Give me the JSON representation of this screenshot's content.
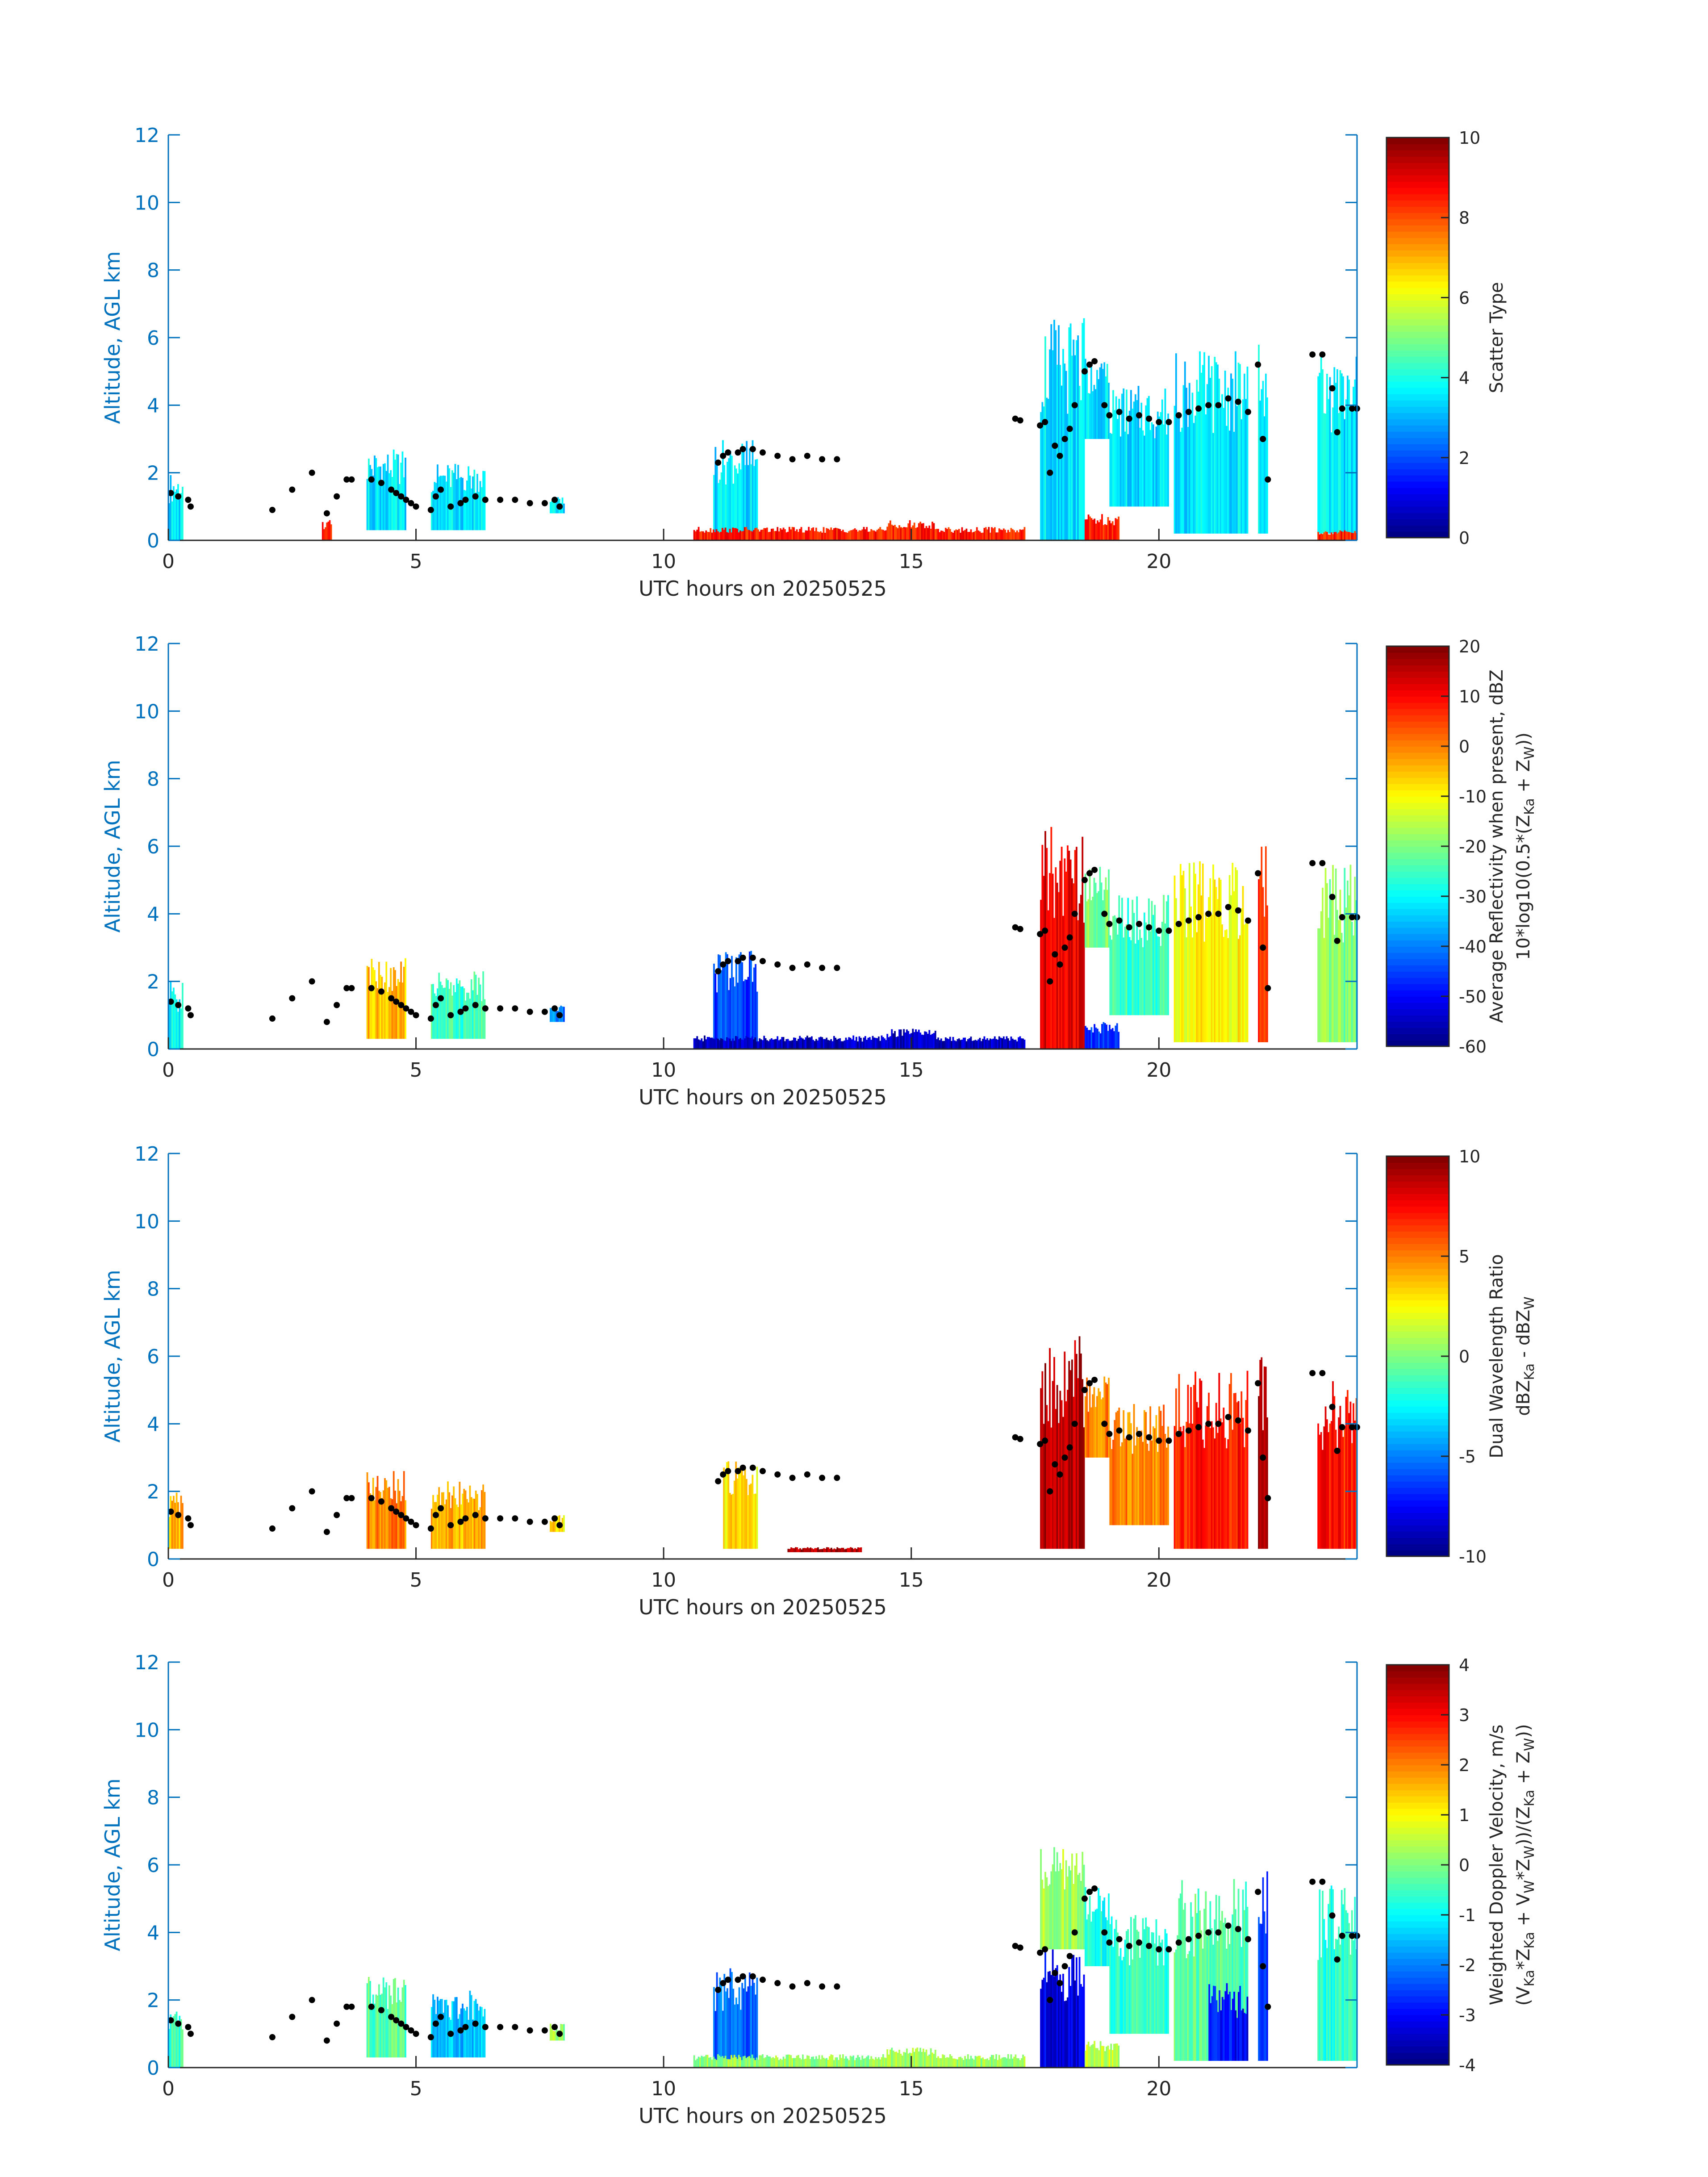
{
  "chart_data": [
    {
      "type": "heatmap",
      "xlabel": "UTC hours on 20250525",
      "ylabel": "Altitude, AGL km",
      "xlim": [
        0,
        24
      ],
      "ylim": [
        0,
        12
      ],
      "xticks": [
        0,
        5,
        10,
        15,
        20
      ],
      "yticks": [
        0,
        2,
        4,
        6,
        8,
        10,
        12
      ],
      "colormap": "jet",
      "clim": [
        0,
        10
      ],
      "cticks": [
        0,
        2,
        4,
        6,
        8,
        10
      ],
      "clabel": [
        [
          {
            "t": "Scatter Type"
          }
        ]
      ],
      "segments": [
        {
          "t": [
            0,
            0.3
          ],
          "z": [
            0,
            2.0
          ],
          "v": 3.5
        },
        {
          "t": [
            4.0,
            4.8
          ],
          "z": [
            0.3,
            2.7
          ],
          "v": 3.5
        },
        {
          "t": [
            5.3,
            6.4
          ],
          "z": [
            0.3,
            2.3
          ],
          "v": 3.5
        },
        {
          "t": [
            7.7,
            8.0
          ],
          "z": [
            0.8,
            1.3
          ],
          "v": 3.5
        },
        {
          "t": [
            11.0,
            11.9
          ],
          "z": [
            0,
            3.0
          ],
          "v": 3.5
        },
        {
          "t": [
            17.6,
            18.5
          ],
          "z": [
            0,
            6.6
          ],
          "v": 3.5
        },
        {
          "t": [
            18.5,
            19.0
          ],
          "z": [
            3.0,
            5.4
          ],
          "v": 3.5
        },
        {
          "t": [
            19.0,
            20.2
          ],
          "z": [
            1.0,
            4.6
          ],
          "v": 3.5
        },
        {
          "t": [
            20.3,
            21.8
          ],
          "z": [
            0.2,
            5.6
          ],
          "v": 3.5
        },
        {
          "t": [
            22.0,
            22.2
          ],
          "z": [
            0.2,
            6.0
          ],
          "v": 3.5
        },
        {
          "t": [
            23.2,
            24.0
          ],
          "z": [
            0.2,
            5.5
          ],
          "v": 3.5
        },
        {
          "t": [
            3.1,
            3.3
          ],
          "z": [
            0,
            0.6
          ],
          "v": 8.5
        },
        {
          "t": [
            10.6,
            17.3
          ],
          "z": [
            0,
            0.4
          ],
          "v": 8.5
        },
        {
          "t": [
            14.5,
            15.5
          ],
          "z": [
            0,
            0.6
          ],
          "v": 8.5
        },
        {
          "t": [
            18.5,
            19.2
          ],
          "z": [
            0,
            0.8
          ],
          "v": 8.5
        },
        {
          "t": [
            23.2,
            24.0
          ],
          "z": [
            0,
            0.3
          ],
          "v": 8.5
        }
      ]
    },
    {
      "type": "heatmap",
      "xlabel": "UTC hours on 20250525",
      "ylabel": "Altitude, AGL km",
      "xlim": [
        0,
        24
      ],
      "ylim": [
        0,
        12
      ],
      "xticks": [
        0,
        5,
        10,
        15,
        20
      ],
      "yticks": [
        0,
        2,
        4,
        6,
        8,
        10,
        12
      ],
      "colormap": "jet",
      "clim": [
        -60,
        20
      ],
      "cticks": [
        -60,
        -50,
        -40,
        -30,
        -20,
        -10,
        0,
        10,
        20
      ],
      "clabel": [
        [
          {
            "t": "Average Reflectivity when present, dBZ"
          }
        ],
        [
          {
            "t": "10*log10(0.5*(Z"
          },
          {
            "t": "Ka",
            "sub": true
          },
          {
            "t": " + Z"
          },
          {
            "t": "W",
            "sub": true
          },
          {
            "t": "))"
          }
        ]
      ],
      "segments": [
        {
          "t": [
            0,
            0.3
          ],
          "z": [
            0,
            2.0
          ],
          "v": -30
        },
        {
          "t": [
            4.0,
            4.8
          ],
          "z": [
            0.3,
            2.7
          ],
          "v": -5
        },
        {
          "t": [
            5.3,
            6.4
          ],
          "z": [
            0.3,
            2.3
          ],
          "v": -25
        },
        {
          "t": [
            7.7,
            8.0
          ],
          "z": [
            0.8,
            1.3
          ],
          "v": -40
        },
        {
          "t": [
            11.0,
            11.9
          ],
          "z": [
            0,
            3.0
          ],
          "v": -45
        },
        {
          "t": [
            17.6,
            18.5
          ],
          "z": [
            0,
            6.6
          ],
          "v": 12
        },
        {
          "t": [
            18.5,
            19.0
          ],
          "z": [
            3.0,
            5.4
          ],
          "v": -20
        },
        {
          "t": [
            19.0,
            20.2
          ],
          "z": [
            1.0,
            4.6
          ],
          "v": -25
        },
        {
          "t": [
            20.3,
            21.8
          ],
          "z": [
            0.2,
            5.6
          ],
          "v": -10
        },
        {
          "t": [
            22.0,
            22.2
          ],
          "z": [
            0.2,
            6.0
          ],
          "v": 5
        },
        {
          "t": [
            23.2,
            24.0
          ],
          "z": [
            0.2,
            5.5
          ],
          "v": -20
        },
        {
          "t": [
            10.6,
            17.3
          ],
          "z": [
            0,
            0.4
          ],
          "v": -55
        },
        {
          "t": [
            14.5,
            15.5
          ],
          "z": [
            0,
            0.6
          ],
          "v": -55
        },
        {
          "t": [
            18.5,
            19.2
          ],
          "z": [
            0,
            0.8
          ],
          "v": -45
        }
      ]
    },
    {
      "type": "heatmap",
      "xlabel": "UTC hours on 20250525",
      "ylabel": "Altitude, AGL km",
      "xlim": [
        0,
        24
      ],
      "ylim": [
        0,
        12
      ],
      "xticks": [
        0,
        5,
        10,
        15,
        20
      ],
      "yticks": [
        0,
        2,
        4,
        6,
        8,
        10,
        12
      ],
      "colormap": "jet",
      "clim": [
        -10,
        10
      ],
      "cticks": [
        -10,
        -5,
        0,
        5,
        10
      ],
      "clabel": [
        [
          {
            "t": "Dual Wavelength Ratio"
          }
        ],
        [
          {
            "t": "dBZ"
          },
          {
            "t": "Ka",
            "sub": true
          },
          {
            "t": " - dBZ"
          },
          {
            "t": "W",
            "sub": true
          }
        ]
      ],
      "segments": [
        {
          "t": [
            0,
            0.3
          ],
          "z": [
            0.3,
            2.0
          ],
          "v": 4
        },
        {
          "t": [
            4.0,
            4.8
          ],
          "z": [
            0.3,
            2.7
          ],
          "v": 5
        },
        {
          "t": [
            5.3,
            6.4
          ],
          "z": [
            0.3,
            2.3
          ],
          "v": 4
        },
        {
          "t": [
            7.7,
            8.0
          ],
          "z": [
            0.8,
            1.3
          ],
          "v": 3
        },
        {
          "t": [
            11.2,
            11.9
          ],
          "z": [
            0.3,
            3.0
          ],
          "v": 3
        },
        {
          "t": [
            17.6,
            18.5
          ],
          "z": [
            0.3,
            6.6
          ],
          "v": 9
        },
        {
          "t": [
            18.5,
            19.0
          ],
          "z": [
            3.0,
            5.4
          ],
          "v": 5
        },
        {
          "t": [
            19.0,
            20.2
          ],
          "z": [
            1.0,
            4.6
          ],
          "v": 5
        },
        {
          "t": [
            20.3,
            21.8
          ],
          "z": [
            0.3,
            5.6
          ],
          "v": 7
        },
        {
          "t": [
            22.0,
            22.2
          ],
          "z": [
            0.3,
            6.0
          ],
          "v": 9
        },
        {
          "t": [
            23.2,
            24.0
          ],
          "z": [
            0.3,
            5.5
          ],
          "v": 7
        },
        {
          "t": [
            12.5,
            14.0
          ],
          "z": [
            0.2,
            0.35
          ],
          "v": 9
        }
      ]
    },
    {
      "type": "heatmap",
      "xlabel": "UTC hours on 20250525",
      "ylabel": "Altitude, AGL km",
      "xlim": [
        0,
        24
      ],
      "ylim": [
        0,
        12
      ],
      "xticks": [
        0,
        5,
        10,
        15,
        20
      ],
      "yticks": [
        0,
        2,
        4,
        6,
        8,
        10,
        12
      ],
      "colormap": "jet",
      "clim": [
        -4,
        4
      ],
      "cticks": [
        -4,
        -3,
        -2,
        -1,
        0,
        1,
        2,
        3,
        4
      ],
      "clabel": [
        [
          {
            "t": "Weighted Doppler Velocity, m/s"
          }
        ],
        [
          {
            "t": "(V"
          },
          {
            "t": "Ka",
            "sub": true
          },
          {
            "t": "*Z"
          },
          {
            "t": "Ka",
            "sub": true
          },
          {
            "t": " + V"
          },
          {
            "t": "W",
            "sub": true
          },
          {
            "t": "*Z"
          },
          {
            "t": "W",
            "sub": true
          },
          {
            "t": "))/(Z"
          },
          {
            "t": "Ka",
            "sub": true
          },
          {
            "t": " + Z"
          },
          {
            "t": "W",
            "sub": true
          },
          {
            "t": "))"
          }
        ]
      ],
      "segments": [
        {
          "t": [
            0,
            0.3
          ],
          "z": [
            0,
            2.0
          ],
          "v": -0.5
        },
        {
          "t": [
            4.0,
            4.8
          ],
          "z": [
            0.3,
            2.7
          ],
          "v": -0.3
        },
        {
          "t": [
            5.3,
            6.4
          ],
          "z": [
            0.3,
            2.3
          ],
          "v": -1.5
        },
        {
          "t": [
            7.7,
            8.0
          ],
          "z": [
            0.8,
            1.3
          ],
          "v": 0.2
        },
        {
          "t": [
            11.0,
            11.9
          ],
          "z": [
            0,
            3.0
          ],
          "v": -2.2
        },
        {
          "t": [
            17.6,
            18.5
          ],
          "z": [
            0,
            3.5
          ],
          "v": -3.2
        },
        {
          "t": [
            17.6,
            18.5
          ],
          "z": [
            3.5,
            6.6
          ],
          "v": 0.3
        },
        {
          "t": [
            18.5,
            19.0
          ],
          "z": [
            3.0,
            5.4
          ],
          "v": -0.8
        },
        {
          "t": [
            19.0,
            20.2
          ],
          "z": [
            1.0,
            4.6
          ],
          "v": -0.6
        },
        {
          "t": [
            20.3,
            21.8
          ],
          "z": [
            0.2,
            5.6
          ],
          "v": -0.3
        },
        {
          "t": [
            21.0,
            21.8
          ],
          "z": [
            0.2,
            2.5
          ],
          "v": -3.0
        },
        {
          "t": [
            22.0,
            22.2
          ],
          "z": [
            0.2,
            6.0
          ],
          "v": -2.5
        },
        {
          "t": [
            23.2,
            24.0
          ],
          "z": [
            0.2,
            5.5
          ],
          "v": -0.7
        },
        {
          "t": [
            10.6,
            17.3
          ],
          "z": [
            0,
            0.4
          ],
          "v": 0.2
        },
        {
          "t": [
            14.5,
            15.5
          ],
          "z": [
            0,
            0.6
          ],
          "v": 0.3
        },
        {
          "t": [
            18.5,
            19.2
          ],
          "z": [
            0,
            0.8
          ],
          "v": 0.6
        }
      ]
    }
  ],
  "cloud_base_points": [
    [
      0.05,
      1.4
    ],
    [
      0.2,
      1.3
    ],
    [
      0.4,
      1.2
    ],
    [
      0.45,
      1.0
    ],
    [
      2.1,
      0.9
    ],
    [
      2.5,
      1.5
    ],
    [
      2.9,
      2.0
    ],
    [
      3.2,
      0.8
    ],
    [
      3.4,
      1.3
    ],
    [
      3.6,
      1.8
    ],
    [
      3.7,
      1.8
    ],
    [
      4.1,
      1.8
    ],
    [
      4.3,
      1.7
    ],
    [
      4.5,
      1.5
    ],
    [
      4.6,
      1.4
    ],
    [
      4.7,
      1.3
    ],
    [
      4.8,
      1.2
    ],
    [
      4.9,
      1.1
    ],
    [
      5.0,
      1.0
    ],
    [
      5.3,
      0.9
    ],
    [
      5.4,
      1.3
    ],
    [
      5.5,
      1.5
    ],
    [
      5.7,
      1.0
    ],
    [
      5.9,
      1.1
    ],
    [
      6.0,
      1.2
    ],
    [
      6.2,
      1.3
    ],
    [
      6.4,
      1.2
    ],
    [
      6.7,
      1.2
    ],
    [
      7.0,
      1.2
    ],
    [
      7.3,
      1.1
    ],
    [
      7.6,
      1.1
    ],
    [
      7.8,
      1.2
    ],
    [
      7.9,
      1.0
    ],
    [
      11.1,
      2.3
    ],
    [
      11.2,
      2.5
    ],
    [
      11.3,
      2.6
    ],
    [
      11.5,
      2.6
    ],
    [
      11.6,
      2.7
    ],
    [
      11.8,
      2.7
    ],
    [
      12.0,
      2.6
    ],
    [
      12.3,
      2.5
    ],
    [
      12.6,
      2.4
    ],
    [
      12.9,
      2.5
    ],
    [
      13.2,
      2.4
    ],
    [
      13.5,
      2.4
    ],
    [
      17.1,
      3.6
    ],
    [
      17.2,
      3.55
    ],
    [
      17.6,
      3.4
    ],
    [
      17.7,
      3.5
    ],
    [
      17.8,
      2.0
    ],
    [
      17.9,
      2.8
    ],
    [
      18.0,
      2.5
    ],
    [
      18.1,
      3.0
    ],
    [
      18.2,
      3.3
    ],
    [
      18.3,
      4.0
    ],
    [
      18.5,
      5.0
    ],
    [
      18.6,
      5.2
    ],
    [
      18.7,
      5.3
    ],
    [
      18.9,
      4.0
    ],
    [
      19.0,
      3.7
    ],
    [
      19.2,
      3.8
    ],
    [
      19.4,
      3.6
    ],
    [
      19.6,
      3.7
    ],
    [
      19.8,
      3.6
    ],
    [
      20.0,
      3.5
    ],
    [
      20.2,
      3.5
    ],
    [
      20.4,
      3.7
    ],
    [
      20.6,
      3.8
    ],
    [
      20.8,
      3.9
    ],
    [
      21.0,
      4.0
    ],
    [
      21.2,
      4.0
    ],
    [
      21.4,
      4.2
    ],
    [
      21.6,
      4.1
    ],
    [
      21.8,
      3.8
    ],
    [
      22.0,
      5.2
    ],
    [
      22.1,
      3.0
    ],
    [
      22.2,
      1.8
    ],
    [
      23.1,
      5.5
    ],
    [
      23.3,
      5.5
    ],
    [
      23.5,
      4.5
    ],
    [
      23.6,
      3.2
    ],
    [
      23.7,
      3.9
    ],
    [
      23.9,
      3.9
    ],
    [
      24.0,
      3.9
    ]
  ],
  "colors": {
    "axis": "#0072BD",
    "text": "#262626",
    "points": "#000000"
  }
}
